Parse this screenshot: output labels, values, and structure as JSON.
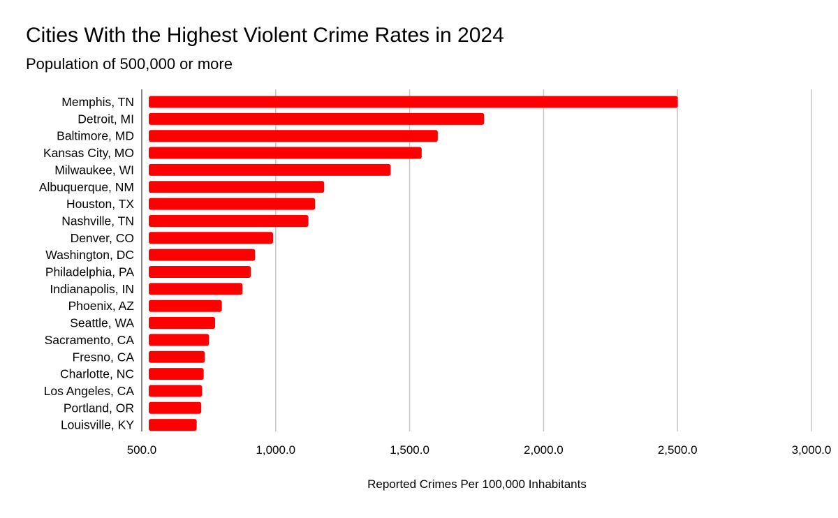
{
  "chart_data": {
    "type": "bar",
    "orientation": "horizontal",
    "title": "Cities With the Highest Violent Crime Rates in 2024",
    "subtitle": "Population of 500,000 or more",
    "xlabel": "Reported Crimes Per 100,000 Inhabitants",
    "ylabel": "",
    "xlim": [
      500,
      3000
    ],
    "x_ticks": [
      500,
      1000,
      1500,
      2000,
      2500,
      3000
    ],
    "x_tick_labels": [
      "500.0",
      "1,000.0",
      "1,500.0",
      "2,000.0",
      "2,500.0",
      "3,000.0"
    ],
    "categories": [
      "Memphis, TN",
      "Detroit, MI",
      "Baltimore, MD",
      "Kansas City, MO",
      "Milwaukee, WI",
      "Albuquerque, NM",
      "Houston, TX",
      "Nashville, TN",
      "Denver, CO",
      "Washington, DC",
      "Philadelphia, PA",
      "Indianapolis, IN",
      "Phoenix, AZ",
      "Seattle, WA",
      "Sacramento, CA",
      "Fresno, CA",
      "Charlotte, NC",
      "Los Angeles, CA",
      "Portland, OR",
      "Louisville, KY"
    ],
    "values": [
      2501,
      1778,
      1605,
      1545,
      1429,
      1181,
      1147,
      1122,
      990,
      923,
      907,
      876,
      799,
      774,
      751,
      735,
      731,
      725,
      722,
      705
    ],
    "bar_color": "#ff0000",
    "gridlines": true,
    "legend": "none"
  }
}
